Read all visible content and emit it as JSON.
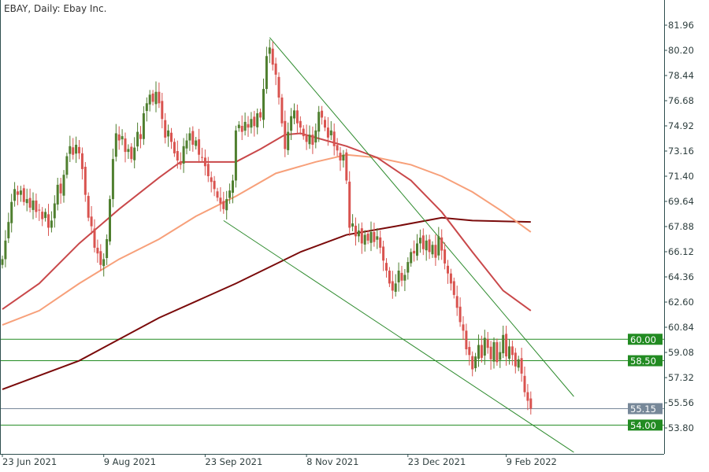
{
  "chart_data": {
    "type": "candlestick",
    "title": "EBAY, Daily:  Ebay Inc.",
    "ylim": [
      52.9,
      82.9
    ],
    "y_ticks": [
      "81.96",
      "80.20",
      "78.44",
      "76.68",
      "74.92",
      "73.16",
      "71.40",
      "69.64",
      "67.88",
      "66.12",
      "64.36",
      "62.60",
      "60.84",
      "59.08",
      "57.32",
      "55.56",
      "53.80"
    ],
    "x_ticks": [
      {
        "bar": 0,
        "label": "23 Jun 2021"
      },
      {
        "bar": 33,
        "label": "9 Aug 2021"
      },
      {
        "bar": 66,
        "label": "23 Sep 2021"
      },
      {
        "bar": 99,
        "label": "8 Nov 2021"
      },
      {
        "bar": 132,
        "label": "23 Dec 2021"
      },
      {
        "bar": 164,
        "label": "9 Feb 2022"
      }
    ],
    "closes": [
      65.6,
      66.9,
      68.2,
      69.6,
      70.5,
      70.1,
      70.4,
      69.6,
      69.8,
      69.2,
      69.7,
      68.9,
      69.0,
      68.4,
      68.9,
      67.8,
      68.3,
      69.5,
      70.8,
      70.2,
      71.5,
      72.8,
      73.5,
      72.9,
      73.6,
      73.0,
      71.9,
      70.1,
      68.5,
      67.9,
      66.4,
      66.0,
      65.2,
      65.6,
      67.0,
      69.8,
      72.6,
      74.4,
      73.9,
      74.2,
      73.1,
      73.3,
      72.6,
      73.4,
      74.5,
      74.0,
      75.8,
      76.5,
      77.1,
      76.6,
      77.3,
      76.5,
      75.4,
      74.1,
      74.6,
      73.8,
      73.0,
      72.5,
      72.2,
      73.5,
      73.9,
      74.4,
      73.6,
      73.9,
      72.9,
      72.7,
      72.1,
      71.4,
      71.0,
      70.5,
      69.9,
      69.5,
      69.1,
      69.8,
      70.4,
      71.1,
      74.6,
      75.0,
      74.5,
      75.2,
      74.8,
      75.4,
      74.9,
      75.8,
      75.5,
      77.5,
      79.8,
      80.4,
      79.2,
      78.5,
      76.9,
      75.1,
      73.3,
      74.5,
      75.6,
      76.0,
      75.1,
      74.8,
      74.2,
      73.8,
      74.3,
      73.6,
      74.6,
      75.9,
      75.5,
      74.8,
      74.1,
      74.6,
      73.5,
      73.2,
      72.5,
      72.9,
      71.1,
      67.8,
      68.1,
      67.2,
      67.6,
      66.7,
      67.3,
      66.9,
      67.5,
      66.8,
      67.2,
      66.4,
      65.5,
      64.8,
      63.9,
      63.4,
      63.9,
      64.8,
      64.1,
      64.5,
      65.4,
      66.1,
      66.0,
      66.7,
      67.1,
      66.3,
      66.9,
      66.1,
      66.6,
      65.7,
      67.2,
      66.2,
      65.3,
      64.6,
      63.9,
      63.1,
      62.2,
      61.2,
      60.6,
      59.3,
      58.9,
      57.9,
      58.8,
      59.6,
      58.7,
      60.1,
      59.4,
      58.6,
      59.8,
      58.4,
      59.1,
      60.3,
      58.8,
      59.5,
      58.9,
      58.1,
      58.6,
      57.6,
      56.3,
      55.7,
      55.15
    ],
    "moving_averages": [
      {
        "color": "#7a0a0a",
        "points": [
          [
            0,
            56.5
          ],
          [
            25,
            58.5
          ],
          [
            51,
            61.5
          ],
          [
            76,
            63.9
          ],
          [
            97,
            66.1
          ],
          [
            112,
            67.3
          ],
          [
            128,
            67.9
          ],
          [
            143,
            68.5
          ],
          [
            153,
            68.3
          ],
          [
            172,
            68.2
          ]
        ]
      },
      {
        "color": "#f7a07a",
        "points": [
          [
            0,
            61.0
          ],
          [
            12,
            62.0
          ],
          [
            25,
            63.9
          ],
          [
            38,
            65.6
          ],
          [
            51,
            67.0
          ],
          [
            63,
            68.6
          ],
          [
            76,
            70.0
          ],
          [
            89,
            71.6
          ],
          [
            102,
            72.4
          ],
          [
            112,
            72.9
          ],
          [
            122,
            72.7
          ],
          [
            133,
            72.2
          ],
          [
            143,
            71.4
          ],
          [
            153,
            70.3
          ],
          [
            163,
            68.9
          ],
          [
            172,
            67.5
          ]
        ]
      },
      {
        "color": "#c9484a",
        "points": [
          [
            0,
            62.1
          ],
          [
            12,
            63.9
          ],
          [
            25,
            66.7
          ],
          [
            38,
            69.1
          ],
          [
            51,
            71.3
          ],
          [
            58,
            72.4
          ],
          [
            69,
            72.4
          ],
          [
            76,
            72.4
          ],
          [
            84,
            73.3
          ],
          [
            92,
            74.3
          ],
          [
            97,
            74.4
          ],
          [
            107,
            73.8
          ],
          [
            112,
            73.5
          ],
          [
            122,
            72.7
          ],
          [
            133,
            71.1
          ],
          [
            143,
            68.9
          ],
          [
            153,
            66.1
          ],
          [
            163,
            63.4
          ],
          [
            172,
            62.0
          ]
        ]
      }
    ],
    "trendlines": [
      {
        "color": "#2e8b2e",
        "from": [
          87,
          81.1
        ],
        "to": [
          186,
          56.0
        ]
      },
      {
        "color": "#2e8b2e",
        "from": [
          72,
          68.3
        ],
        "to": [
          186,
          52.1
        ]
      }
    ],
    "levels": [
      {
        "value": 60.0,
        "label": "60.00",
        "color": "#228b22"
      },
      {
        "value": 58.5,
        "label": "58.50",
        "color": "#228b22"
      },
      {
        "value": 54.0,
        "label": "54.00",
        "color": "#228b22"
      },
      {
        "value": 55.15,
        "label": "55.15",
        "color": "#778899"
      }
    ],
    "colors": {
      "bull": "#4f7f2f",
      "bear": "#d9534f",
      "axis": "#2f4f4f"
    }
  }
}
